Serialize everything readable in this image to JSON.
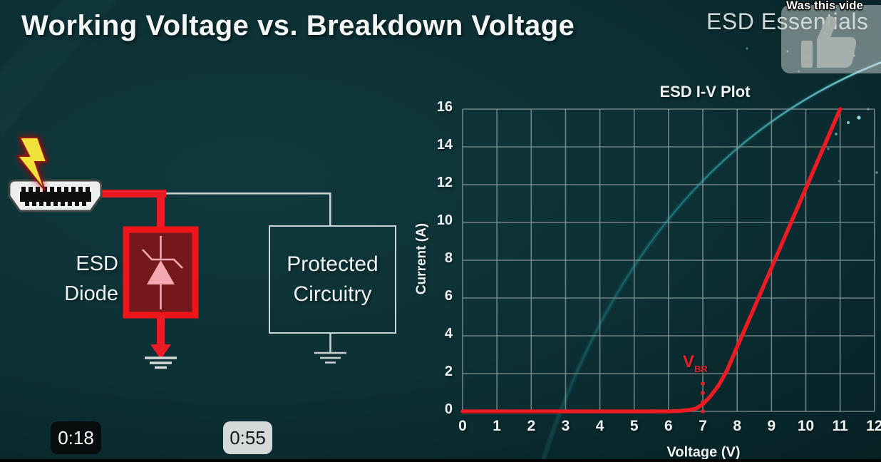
{
  "video": {
    "current_time": "0:18",
    "chapter_time": "0:55",
    "overlay_question": "Was this vide",
    "watermark": "ESD Essentials"
  },
  "slide": {
    "title": "Working Voltage vs. Breakdown Voltage",
    "circuit": {
      "esd_diode_label_line1": "ESD",
      "esd_diode_label_line2": "Diode",
      "protected_label_line1": "Protected",
      "protected_label_line2": "Circuitry"
    }
  },
  "chart_data": {
    "type": "line",
    "title": "ESD I-V Plot",
    "xlabel": "Voltage (V)",
    "ylabel": "Current (A)",
    "xlim": [
      0,
      12
    ],
    "ylim": [
      0,
      16
    ],
    "xticks": [
      0,
      1,
      2,
      3,
      4,
      5,
      6,
      7,
      8,
      9,
      10,
      11,
      12
    ],
    "yticks": [
      0,
      2,
      4,
      6,
      8,
      10,
      12,
      14,
      16
    ],
    "grid": true,
    "legend": false,
    "series": [
      {
        "name": "ESD diode I-V curve",
        "color": "#ea1b23",
        "points": [
          [
            0,
            0
          ],
          [
            6,
            0
          ],
          [
            6.3,
            0.02
          ],
          [
            6.6,
            0.07
          ],
          [
            6.8,
            0.15
          ],
          [
            7.0,
            0.38
          ],
          [
            7.2,
            0.75
          ],
          [
            7.45,
            1.35
          ],
          [
            7.7,
            2.15
          ],
          [
            7.9,
            3.0
          ],
          [
            8.5,
            5.5
          ],
          [
            9.5,
            9.7
          ],
          [
            11,
            16
          ]
        ]
      }
    ],
    "annotations": [
      {
        "text": "V",
        "subscript": "BR",
        "x": 7,
        "color": "#e8222a",
        "marker": "dotted-vertical-line"
      }
    ]
  },
  "colors": {
    "accent_red": "#ea1b23",
    "diode_box_fill": "#74181c",
    "background_teal": "#0c3034",
    "grid_gray": "#87989a"
  }
}
